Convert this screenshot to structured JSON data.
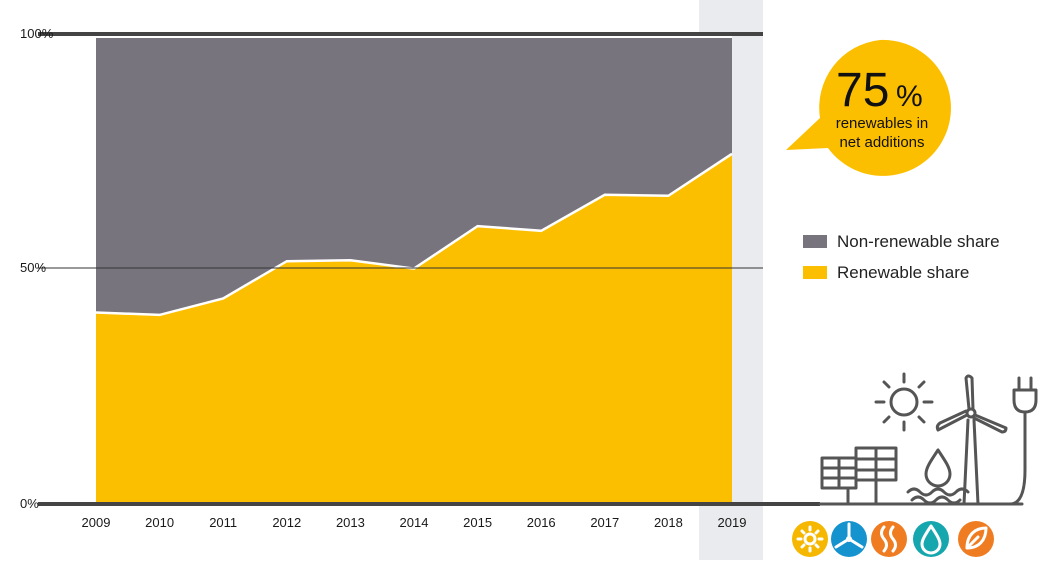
{
  "chart_data": {
    "type": "area",
    "title": "",
    "xlabel": "",
    "ylabel": "",
    "x": [
      "2009",
      "2010",
      "2011",
      "2012",
      "2013",
      "2014",
      "2015",
      "2016",
      "2017",
      "2018",
      "2019"
    ],
    "ylim": [
      0,
      100
    ],
    "yticks": [
      "0%",
      "50%",
      "100%"
    ],
    "stacked_to_100": true,
    "highlighted_category": "2019",
    "legend_position": "right",
    "series": [
      {
        "name": "Non-renewable share",
        "color": "#77747d",
        "values": [
          59,
          59.5,
          56,
          48,
          47.8,
          49.6,
          40.5,
          41.5,
          33.8,
          34,
          25
        ]
      },
      {
        "name": "Renewable share",
        "color": "#fcbf00",
        "values": [
          41,
          40.5,
          44,
          52,
          52.2,
          50.4,
          59.5,
          58.5,
          66.2,
          66,
          75
        ]
      }
    ],
    "annotations": [
      {
        "value": "75",
        "unit": "%",
        "text_line1": "renewables in",
        "text_line2": "net additions",
        "color": "#fcbf00"
      }
    ]
  },
  "icons": {
    "illustration": [
      "solar-panel-icon",
      "sun-icon",
      "water-drop-icon",
      "wind-turbine-icon",
      "power-plug-icon"
    ],
    "badges": [
      {
        "name": "solar-badge-icon",
        "color": "#f6b700"
      },
      {
        "name": "wind-badge-icon",
        "color": "#1593ce"
      },
      {
        "name": "geothermal-badge-icon",
        "color": "#ef7c21"
      },
      {
        "name": "hydro-badge-icon",
        "color": "#16a6ad"
      },
      {
        "name": "bioenergy-badge-icon",
        "color": "#ef7c21"
      }
    ]
  }
}
